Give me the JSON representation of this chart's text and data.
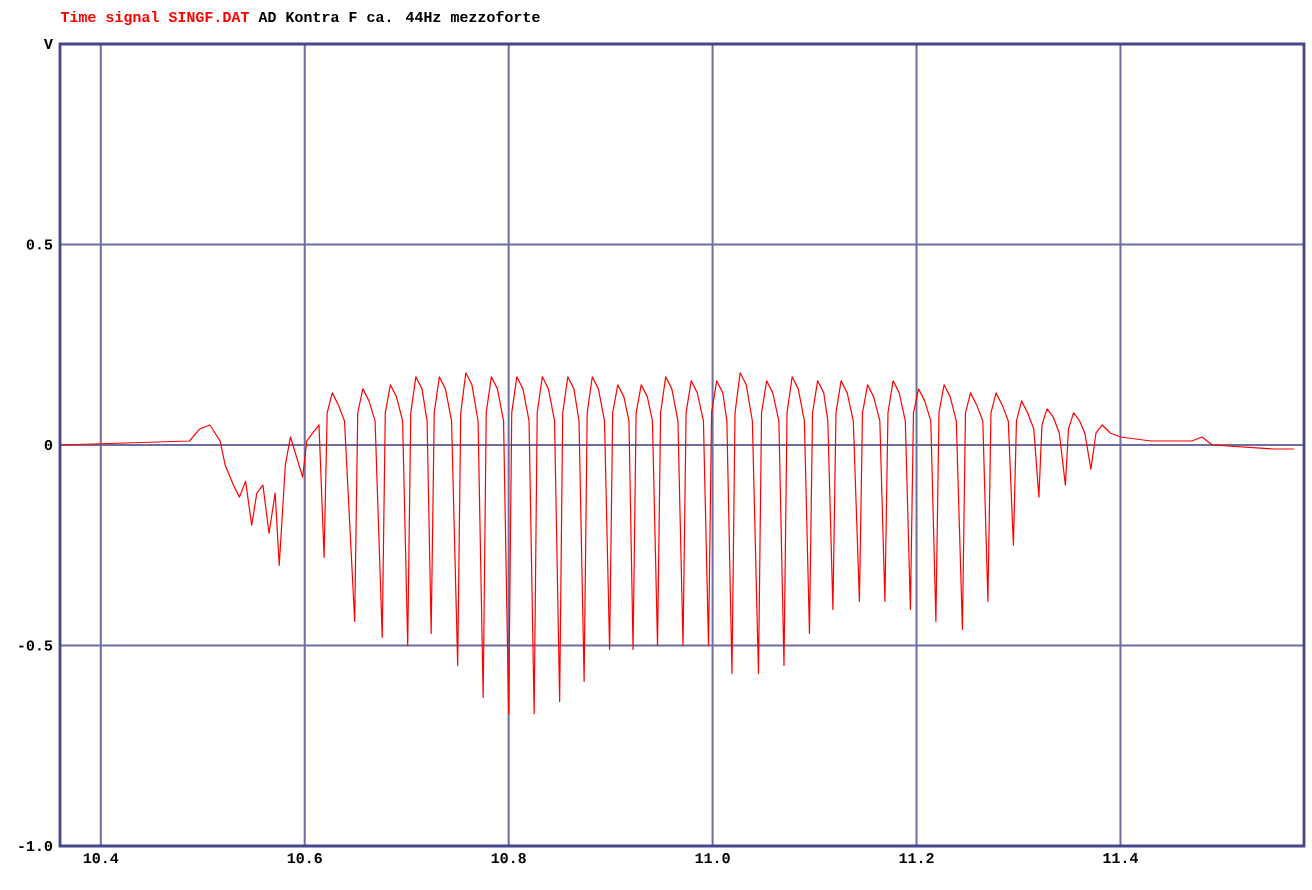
{
  "chart_data": {
    "type": "line",
    "title": "Time signal SINGF.DAT",
    "subtitle": "AD Kontra F ca. 44Hz mezzoforte",
    "ylabel": "V",
    "color": "#ff0000",
    "x": [
      10.361,
      10.487,
      10.497,
      10.507,
      10.517,
      10.522,
      10.53,
      10.536,
      10.542,
      10.548,
      10.553,
      10.559,
      10.565,
      10.571,
      10.575,
      10.581,
      10.586,
      10.592,
      10.598,
      10.602,
      10.608,
      10.614,
      10.619,
      10.622,
      10.627,
      10.633,
      10.639,
      10.649,
      10.652,
      10.657,
      10.663,
      10.669,
      10.676,
      10.679,
      10.684,
      10.69,
      10.696,
      10.701,
      10.704,
      10.709,
      10.715,
      10.72,
      10.724,
      10.727,
      10.732,
      10.738,
      10.744,
      10.75,
      10.753,
      10.758,
      10.764,
      10.77,
      10.775,
      10.778,
      10.783,
      10.789,
      10.795,
      10.8,
      10.803,
      10.808,
      10.814,
      10.82,
      10.825,
      10.828,
      10.833,
      10.839,
      10.845,
      10.85,
      10.853,
      10.858,
      10.864,
      10.869,
      10.874,
      10.877,
      10.882,
      10.888,
      10.894,
      10.899,
      10.902,
      10.907,
      10.913,
      10.918,
      10.922,
      10.925,
      10.93,
      10.936,
      10.941,
      10.946,
      10.949,
      10.954,
      10.96,
      10.966,
      10.971,
      10.974,
      10.979,
      10.985,
      10.991,
      10.996,
      10.999,
      11.004,
      11.01,
      11.014,
      11.019,
      11.022,
      11.027,
      11.033,
      11.039,
      11.045,
      11.048,
      11.053,
      11.059,
      11.065,
      11.07,
      11.073,
      11.078,
      11.084,
      11.09,
      11.095,
      11.098,
      11.103,
      11.109,
      11.113,
      11.118,
      11.121,
      11.126,
      11.132,
      11.138,
      11.144,
      11.147,
      11.152,
      11.158,
      11.164,
      11.169,
      11.172,
      11.177,
      11.183,
      11.189,
      11.194,
      11.197,
      11.202,
      11.208,
      11.214,
      11.219,
      11.222,
      11.227,
      11.233,
      11.239,
      11.245,
      11.248,
      11.253,
      11.259,
      11.265,
      11.27,
      11.273,
      11.278,
      11.284,
      11.29,
      11.295,
      11.298,
      11.303,
      11.309,
      11.315,
      11.32,
      11.323,
      11.328,
      11.334,
      11.34,
      11.346,
      11.349,
      11.354,
      11.36,
      11.365,
      11.371,
      11.376,
      11.382,
      11.39,
      11.4,
      11.43,
      11.47,
      11.48,
      11.49,
      11.55,
      11.57
    ],
    "values": [
      0,
      0.01,
      0.04,
      0.05,
      0.01,
      -0.05,
      -0.1,
      -0.13,
      -0.09,
      -0.2,
      -0.12,
      -0.1,
      -0.22,
      -0.12,
      -0.3,
      -0.05,
      0.02,
      -0.03,
      -0.08,
      0.01,
      0.03,
      0.05,
      -0.28,
      0.08,
      0.13,
      0.1,
      0.06,
      -0.44,
      0.08,
      0.14,
      0.11,
      0.06,
      -0.48,
      0.08,
      0.15,
      0.12,
      0.06,
      -0.5,
      0.08,
      0.17,
      0.14,
      0.06,
      -0.47,
      0.08,
      0.17,
      0.14,
      0.06,
      -0.55,
      0.08,
      0.18,
      0.15,
      0.06,
      -0.63,
      0.08,
      0.17,
      0.14,
      0.06,
      -0.67,
      0.08,
      0.17,
      0.14,
      0.06,
      -0.67,
      0.08,
      0.17,
      0.14,
      0.06,
      -0.64,
      0.08,
      0.17,
      0.14,
      0.06,
      -0.59,
      0.08,
      0.17,
      0.14,
      0.06,
      -0.51,
      0.08,
      0.15,
      0.12,
      0.06,
      -0.51,
      0.08,
      0.15,
      0.12,
      0.06,
      -0.5,
      0.08,
      0.17,
      0.14,
      0.06,
      -0.5,
      0.08,
      0.16,
      0.13,
      0.06,
      -0.5,
      0.08,
      0.16,
      0.13,
      0.06,
      -0.57,
      0.08,
      0.18,
      0.15,
      0.06,
      -0.57,
      0.08,
      0.16,
      0.13,
      0.06,
      -0.55,
      0.08,
      0.17,
      0.14,
      0.06,
      -0.47,
      0.08,
      0.16,
      0.13,
      0.06,
      -0.41,
      0.08,
      0.16,
      0.13,
      0.06,
      -0.39,
      0.08,
      0.15,
      0.12,
      0.06,
      -0.39,
      0.08,
      0.16,
      0.13,
      0.06,
      -0.41,
      0.08,
      0.14,
      0.11,
      0.06,
      -0.44,
      0.08,
      0.15,
      0.12,
      0.06,
      -0.46,
      0.08,
      0.13,
      0.1,
      0.06,
      -0.39,
      0.08,
      0.13,
      0.1,
      0.06,
      -0.25,
      0.06,
      0.11,
      0.08,
      0.04,
      -0.13,
      0.05,
      0.09,
      0.07,
      0.03,
      -0.1,
      0.04,
      0.08,
      0.06,
      0.03,
      -0.06,
      0.03,
      0.05,
      0.03,
      0.02,
      0.01,
      0.01,
      0.02,
      0.0,
      -0.01,
      -0.01
    ],
    "xlim": [
      10.36,
      11.58
    ],
    "ylim": [
      -1,
      1
    ],
    "xticks": [
      10.4,
      10.6,
      10.8,
      {
        "value": 11,
        "label": "11.0"
      },
      11.2,
      11.4
    ],
    "yticks": [
      {
        "value": -1,
        "label": "-1.0"
      },
      -0.5,
      0,
      0.5
    ],
    "grid": true
  }
}
